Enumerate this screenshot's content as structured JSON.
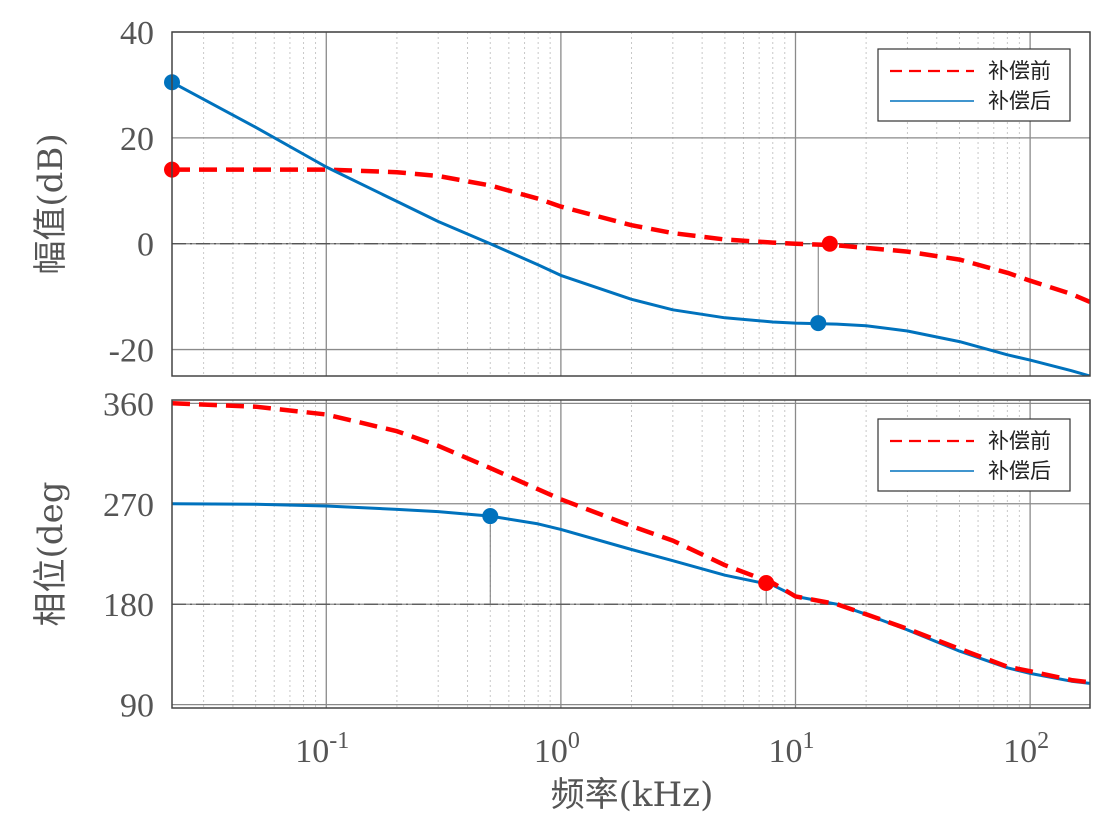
{
  "chart_data": [
    {
      "type": "line",
      "ylabel": "幅值(dB)",
      "xscale": "log",
      "xlim": [
        0.022,
        180
      ],
      "ylim": [
        -25,
        40
      ],
      "xticks": [
        0.1,
        1,
        10,
        100
      ],
      "yticks": [
        -20,
        0,
        20,
        40
      ],
      "ytick_labels": [
        "-20",
        "0",
        "20",
        "40"
      ],
      "grid": true,
      "legend_position": "top-right",
      "series": [
        {
          "name": "补偿前",
          "color": "#ff0000",
          "style": "dashed",
          "x": [
            0.022,
            0.05,
            0.1,
            0.2,
            0.3,
            0.5,
            0.8,
            1,
            2,
            3,
            5,
            8,
            10,
            15,
            20,
            30,
            50,
            80,
            100,
            150,
            180
          ],
          "y": [
            14,
            14,
            14,
            13.5,
            12.8,
            11,
            8.5,
            7,
            3.5,
            2,
            0.8,
            0.2,
            0,
            -0.3,
            -0.8,
            -1.5,
            -3,
            -5.5,
            -7,
            -9.5,
            -11
          ]
        },
        {
          "name": "补偿后",
          "color": "#0072bd",
          "style": "solid",
          "x": [
            0.022,
            0.05,
            0.1,
            0.2,
            0.3,
            0.5,
            0.8,
            1,
            2,
            3,
            5,
            8,
            10,
            15,
            20,
            30,
            50,
            80,
            100,
            150,
            180
          ],
          "y": [
            30.5,
            22,
            14.5,
            8,
            4.2,
            0,
            -4,
            -6,
            -10.5,
            -12.5,
            -14,
            -14.8,
            -15,
            -15.2,
            -15.5,
            -16.5,
            -18.5,
            -21,
            -22,
            -24,
            -25
          ]
        }
      ],
      "markers": [
        {
          "color": "#0072bd",
          "x": 0.022,
          "y": 30.5
        },
        {
          "color": "#ff0000",
          "x": 0.022,
          "y": 14
        },
        {
          "color": "#ff0000",
          "x": 14,
          "y": 0
        },
        {
          "color": "#0072bd",
          "x": 12.5,
          "y": -15
        }
      ]
    },
    {
      "type": "line",
      "ylabel": "相位(deg",
      "xlabel": "频率(kHz)",
      "xscale": "log",
      "xlim": [
        0.022,
        180
      ],
      "ylim": [
        87,
        363
      ],
      "xticks": [
        0.1,
        1,
        10,
        100
      ],
      "xtick_bases": [
        "10",
        "10",
        "10",
        "10"
      ],
      "xtick_exponents": [
        "-1",
        "0",
        "1",
        "2"
      ],
      "yticks": [
        90,
        180,
        270,
        360
      ],
      "ytick_labels": [
        "90",
        "180",
        "270",
        "360"
      ],
      "grid": true,
      "legend_position": "top-right",
      "series": [
        {
          "name": "补偿前",
          "color": "#ff0000",
          "style": "dashed",
          "x": [
            0.022,
            0.05,
            0.1,
            0.2,
            0.3,
            0.5,
            0.8,
            1,
            2,
            3,
            5,
            8,
            10,
            15,
            20,
            30,
            50,
            80,
            100,
            150,
            180
          ],
          "y": [
            360,
            357,
            350,
            335,
            322,
            302,
            283,
            274,
            250,
            237,
            215,
            199,
            187,
            180,
            171,
            158,
            140,
            124,
            120,
            112,
            110
          ]
        },
        {
          "name": "补偿后",
          "color": "#0072bd",
          "style": "solid",
          "x": [
            0.022,
            0.05,
            0.1,
            0.2,
            0.3,
            0.5,
            0.8,
            1,
            2,
            3,
            5,
            8,
            10,
            15,
            20,
            30,
            50,
            80,
            100,
            150,
            180
          ],
          "y": [
            270,
            269.5,
            268,
            265,
            263,
            259,
            252,
            247,
            229,
            219,
            206,
            197,
            187,
            180,
            171,
            157,
            138,
            123,
            118,
            111,
            109
          ]
        }
      ],
      "markers": [
        {
          "color": "#0072bd",
          "x": 0.5,
          "y": 259
        },
        {
          "color": "#ff0000",
          "x": 7.5,
          "y": 199
        }
      ]
    }
  ]
}
